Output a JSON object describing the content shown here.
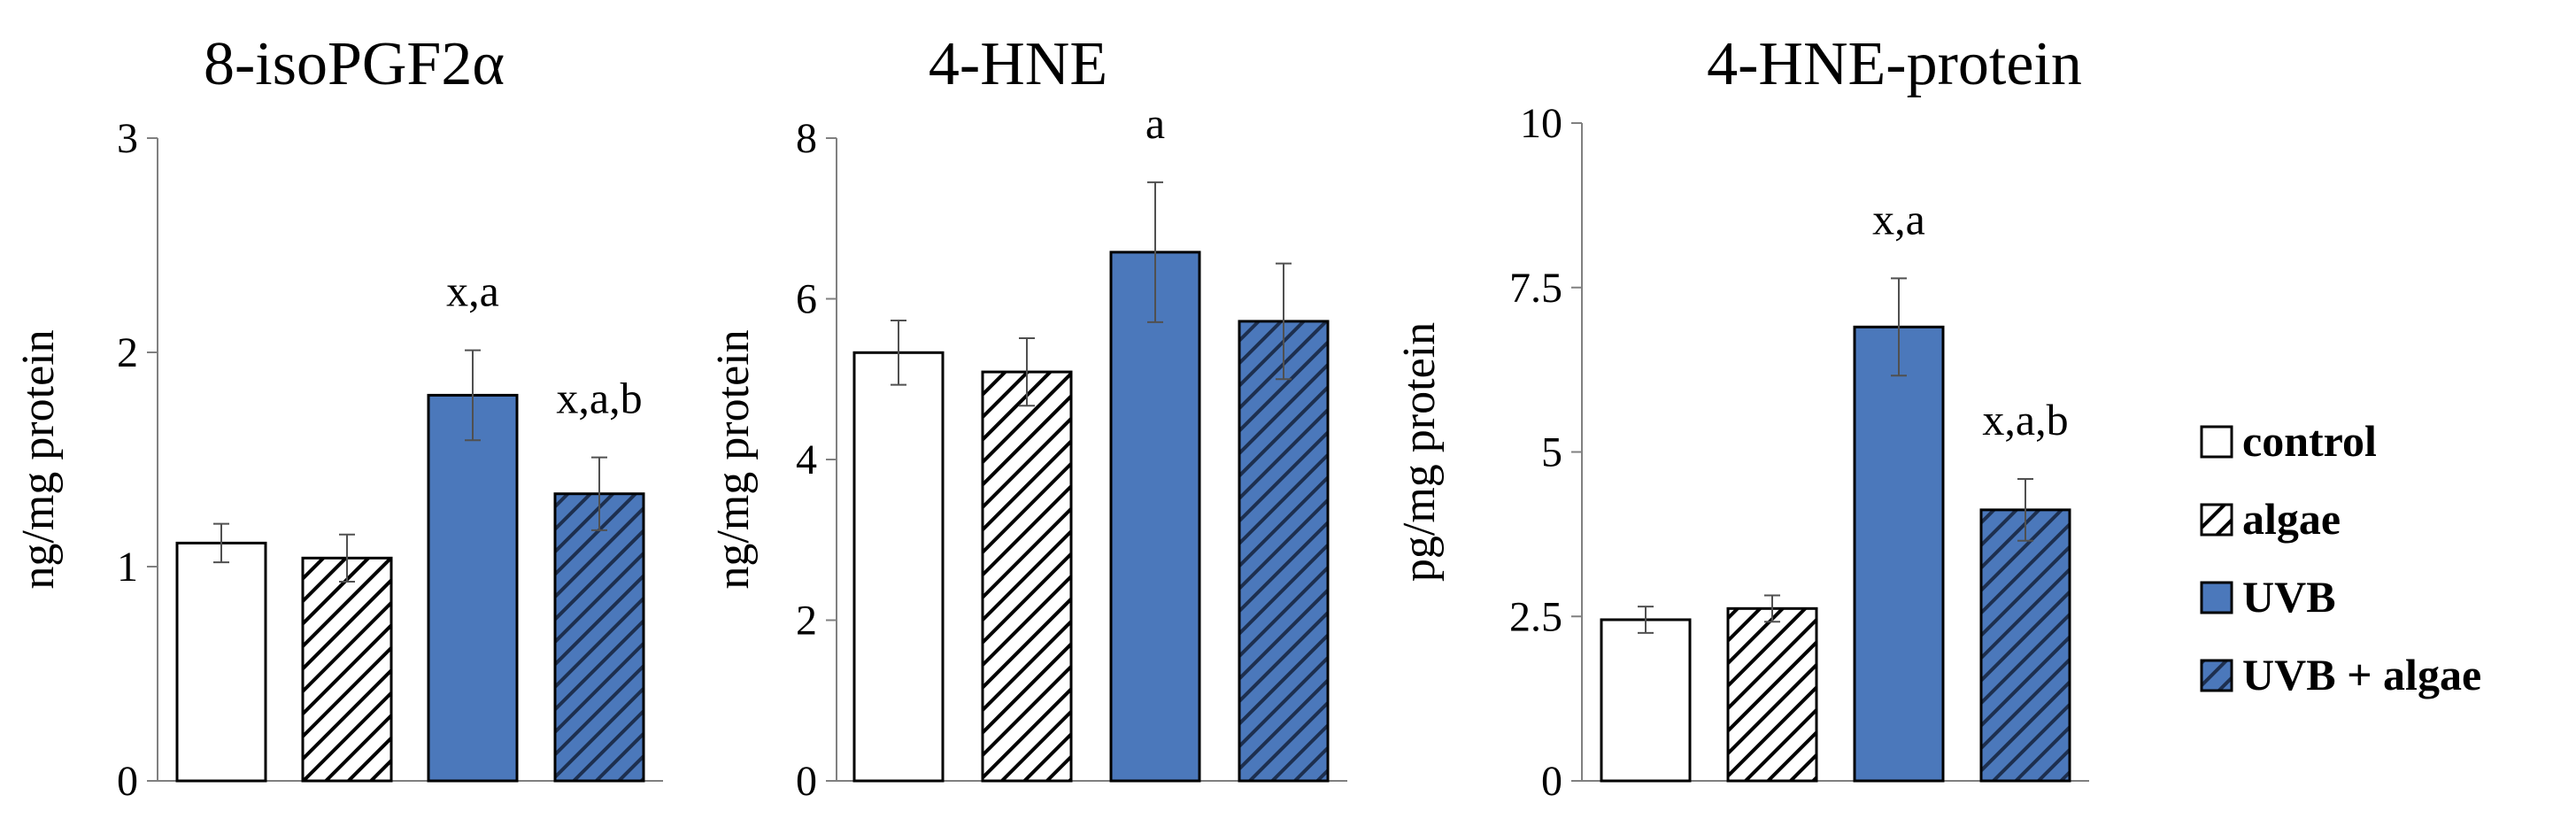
{
  "legend": {
    "items": [
      {
        "label": "control",
        "pattern": "plain",
        "fill": "#ffffff"
      },
      {
        "label": "algae",
        "pattern": "hatch",
        "fill": "#ffffff"
      },
      {
        "label": "UVB",
        "pattern": "plain",
        "fill": "#4b78bb"
      },
      {
        "label": "UVB + algae",
        "pattern": "hatch",
        "fill": "#4b78bb"
      }
    ]
  },
  "colors": {
    "uvb": "#4b78bb",
    "outline": "#000000",
    "axis": "#808080",
    "error": "#505050"
  },
  "chart_data": [
    {
      "type": "bar",
      "title": "8-isoPGF2α",
      "ylabel": "ng/mg protein",
      "ylim": [
        0,
        3
      ],
      "yticks": [
        "0",
        "1",
        "2",
        "3"
      ],
      "categories": [
        "control",
        "algae",
        "UVB",
        "UVB + algae"
      ],
      "values": [
        1.11,
        1.04,
        1.8,
        1.34
      ],
      "errors": [
        0.09,
        0.11,
        0.21,
        0.17
      ],
      "annotations": [
        "",
        "",
        "x,a",
        "x,a,b"
      ]
    },
    {
      "type": "bar",
      "title": "4-HNE",
      "ylabel": "ng/mg protein",
      "ylim": [
        0,
        8
      ],
      "yticks": [
        "0",
        "2",
        "4",
        "6",
        "8"
      ],
      "categories": [
        "control",
        "algae",
        "UVB",
        "UVB + algae"
      ],
      "values": [
        5.33,
        5.09,
        6.58,
        5.72
      ],
      "errors": [
        0.4,
        0.42,
        0.87,
        0.72
      ],
      "annotations": [
        "",
        "",
        "a",
        ""
      ]
    },
    {
      "type": "bar",
      "title": "4-HNE-protein",
      "ylabel": "pg/mg protein",
      "ylim": [
        0,
        10
      ],
      "yticks": [
        "0",
        "2.5",
        "5",
        "7.5",
        "10"
      ],
      "categories": [
        "control",
        "algae",
        "UVB",
        "UVB + algae"
      ],
      "values": [
        2.45,
        2.62,
        6.9,
        4.12
      ],
      "errors": [
        0.2,
        0.2,
        0.74,
        0.47
      ],
      "annotations": [
        "",
        "",
        "x,a",
        "x,a,b"
      ]
    }
  ]
}
